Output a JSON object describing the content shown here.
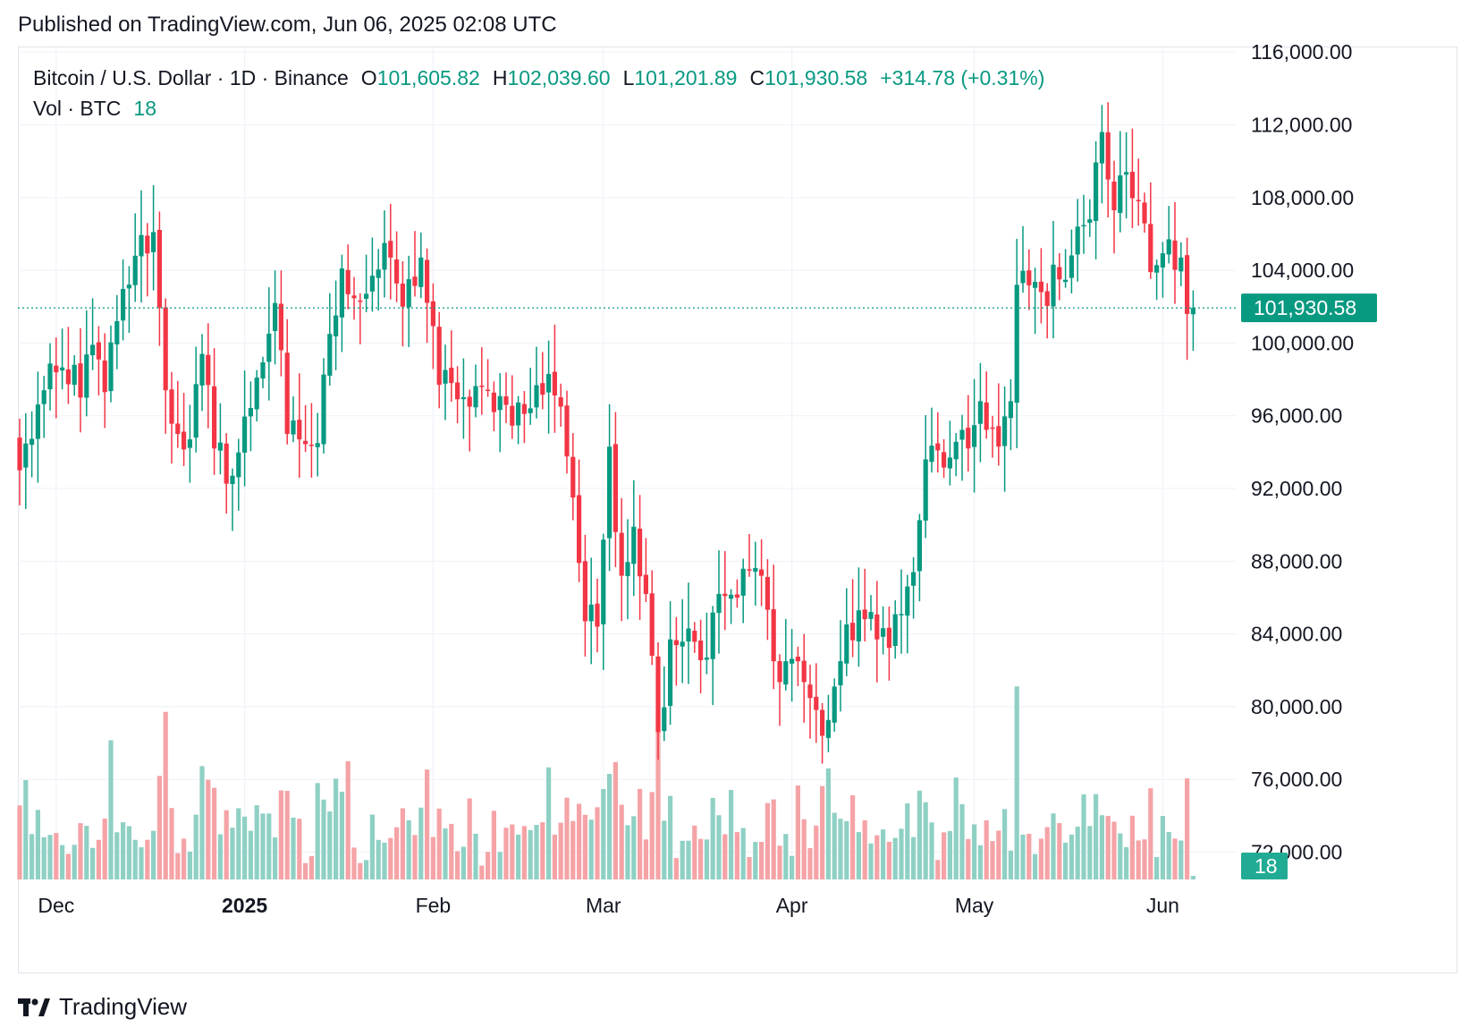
{
  "published": "Published on TradingView.com, Jun 06, 2025 02:08 UTC",
  "legend": {
    "symbol": "Bitcoin / U.S. Dollar · 1D · Binance",
    "o_label": "O",
    "o_value": "101,605.82",
    "h_label": "H",
    "h_value": "102,039.60",
    "l_label": "L",
    "l_value": "101,201.89",
    "c_label": "C",
    "c_value": "101,930.58",
    "change": "+314.78 (+0.31%)",
    "vol_label": "Vol · BTC",
    "vol_value": "18"
  },
  "footer": {
    "brand": "TradingView",
    "logo_icon": "tradingview-logo-icon"
  },
  "colors": {
    "up": "#089981",
    "down": "#f23645",
    "vol_up": "#8fd0c4",
    "vol_down": "#f5a3a6",
    "grid": "#f0f3fa",
    "text": "#131722"
  },
  "chart_data": {
    "type": "candlestick",
    "symbol": "Bitcoin / U.S. Dollar",
    "interval": "1D",
    "exchange": "Binance",
    "ylim": [
      70000,
      118000
    ],
    "y_ticks": [
      72000,
      76000,
      80000,
      84000,
      88000,
      92000,
      96000,
      100000,
      104000,
      108000,
      112000,
      116000
    ],
    "y_tick_labels": [
      "72,000.00",
      "76,000.00",
      "80,000.00",
      "84,000.00",
      "88,000.00",
      "92,000.00",
      "96,000.00",
      "100,000.00",
      "104,000.00",
      "108,000.00",
      "112,000.00",
      "116,000.00"
    ],
    "x_tick_labels": [
      {
        "label": "Dec",
        "date": "2024-12-01",
        "bold": false
      },
      {
        "label": "2025",
        "date": "2025-01-01",
        "bold": true
      },
      {
        "label": "Feb",
        "date": "2025-02-01",
        "bold": false
      },
      {
        "label": "Mar",
        "date": "2025-03-01",
        "bold": false
      },
      {
        "label": "Apr",
        "date": "2025-04-01",
        "bold": false
      },
      {
        "label": "May",
        "date": "2025-05-01",
        "bold": false
      },
      {
        "label": "Jun",
        "date": "2025-06-01",
        "bold": false
      }
    ],
    "last_price": 101930.58,
    "last_price_label": "101,930.58",
    "last_volume_label": "18",
    "first_date": "2024-11-25",
    "close_path": [
      [
        "2024-11-25",
        93000
      ],
      [
        "2024-11-29",
        97400
      ],
      [
        "2024-12-04",
        98800
      ],
      [
        "2024-12-05",
        97000
      ],
      [
        "2024-12-07",
        99900
      ],
      [
        "2024-12-09",
        97300
      ],
      [
        "2024-12-11",
        101200
      ],
      [
        "2024-12-14",
        104800
      ],
      [
        "2024-12-17",
        106100
      ],
      [
        "2024-12-19",
        97400
      ],
      [
        "2024-12-21",
        95000
      ],
      [
        "2024-12-23",
        94700
      ],
      [
        "2024-12-25",
        99400
      ],
      [
        "2024-12-27",
        94200
      ],
      [
        "2024-12-30",
        92700
      ],
      [
        "2025-01-03",
        98100
      ],
      [
        "2025-01-06",
        102200
      ],
      [
        "2025-01-08",
        95000
      ],
      [
        "2025-01-10",
        94700
      ],
      [
        "2025-01-13",
        94500
      ],
      [
        "2025-01-15",
        100500
      ],
      [
        "2025-01-17",
        104100
      ],
      [
        "2025-01-20",
        102300
      ],
      [
        "2025-01-22",
        103700
      ],
      [
        "2025-01-25",
        104700
      ],
      [
        "2025-01-27",
        102000
      ],
      [
        "2025-01-30",
        104700
      ],
      [
        "2025-02-02",
        97700
      ],
      [
        "2025-02-04",
        97800
      ],
      [
        "2025-02-07",
        96500
      ],
      [
        "2025-02-10",
        97400
      ],
      [
        "2025-02-13",
        96600
      ],
      [
        "2025-02-16",
        96100
      ],
      [
        "2025-02-20",
        98300
      ],
      [
        "2025-02-22",
        96500
      ],
      [
        "2025-02-24",
        91500
      ],
      [
        "2025-02-26",
        84700
      ],
      [
        "2025-02-28",
        84400
      ],
      [
        "2025-03-02",
        94300
      ],
      [
        "2025-03-04",
        87200
      ],
      [
        "2025-03-06",
        89900
      ],
      [
        "2025-03-08",
        86200
      ],
      [
        "2025-03-10",
        78600
      ],
      [
        "2025-03-12",
        83700
      ],
      [
        "2025-03-15",
        84300
      ],
      [
        "2025-03-18",
        82700
      ],
      [
        "2025-03-20",
        86200
      ],
      [
        "2025-03-23",
        86000
      ],
      [
        "2025-03-25",
        87500
      ],
      [
        "2025-03-27",
        87200
      ],
      [
        "2025-03-29",
        82500
      ],
      [
        "2025-03-31",
        82500
      ],
      [
        "2025-04-02",
        82500
      ],
      [
        "2025-04-06",
        78400
      ],
      [
        "2025-04-09",
        82500
      ],
      [
        "2025-04-12",
        85300
      ],
      [
        "2025-04-15",
        83700
      ],
      [
        "2025-04-19",
        85100
      ],
      [
        "2025-04-21",
        87400
      ],
      [
        "2025-04-23",
        93600
      ],
      [
        "2025-04-27",
        93700
      ],
      [
        "2025-04-30",
        94200
      ],
      [
        "2025-05-02",
        96800
      ],
      [
        "2025-05-05",
        94300
      ],
      [
        "2025-05-07",
        96800
      ],
      [
        "2025-05-08",
        103200
      ],
      [
        "2025-05-12",
        102800
      ],
      [
        "2025-05-15",
        103500
      ],
      [
        "2025-05-18",
        106400
      ],
      [
        "2025-05-20",
        106800
      ],
      [
        "2025-05-22",
        111600
      ],
      [
        "2025-05-24",
        107300
      ],
      [
        "2025-05-26",
        109400
      ],
      [
        "2025-05-28",
        107800
      ],
      [
        "2025-05-30",
        103900
      ],
      [
        "2025-06-02",
        105700
      ],
      [
        "2025-06-04",
        104700
      ],
      [
        "2025-06-05",
        101600
      ],
      [
        "2025-06-06",
        101930.58
      ]
    ],
    "grid": true,
    "legend_position": "top-left"
  }
}
